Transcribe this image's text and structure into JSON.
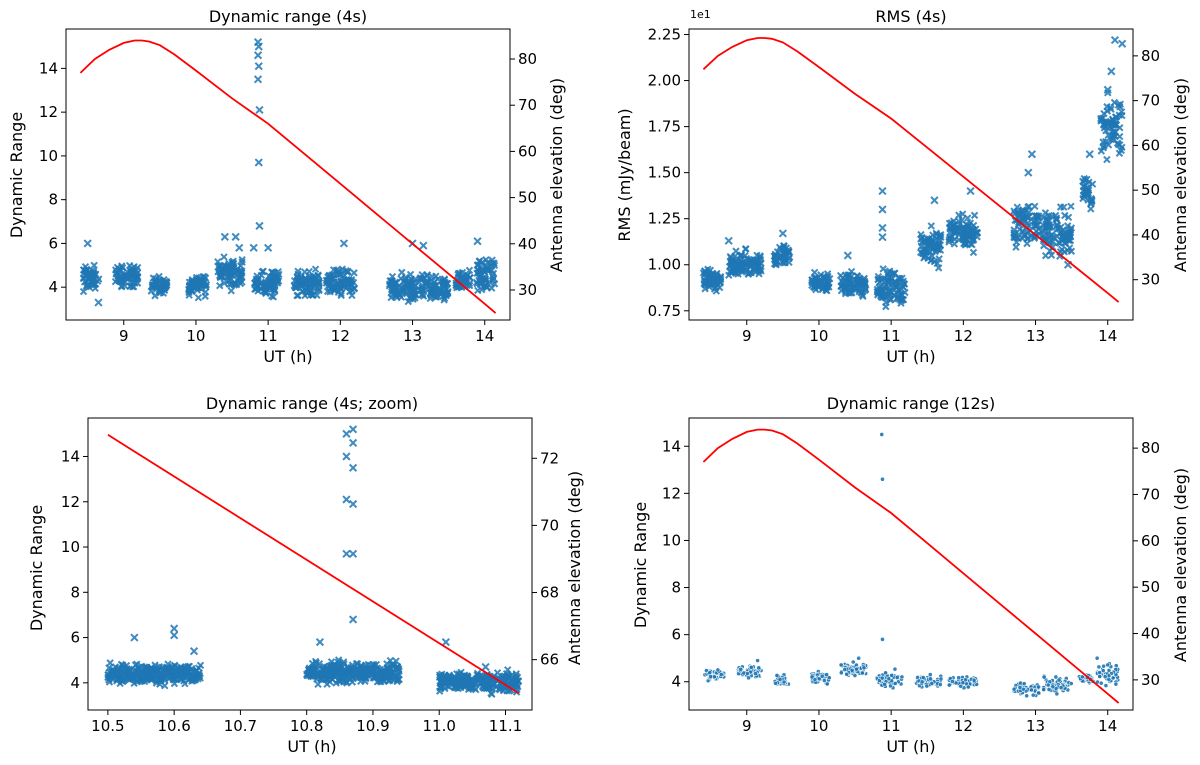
{
  "colors": {
    "points": "#1f77b4",
    "elevation": "#ff0000",
    "axes": "#000000"
  },
  "chart_data": [
    {
      "type": "scatter",
      "title": "Dynamic range (4s)",
      "xlabel": "UT (h)",
      "ylabel": "Dynamic Range",
      "y2label": "Antenna elevation (deg)",
      "marker": "x",
      "xlim": [
        8.2,
        14.35
      ],
      "ylim": [
        2.5,
        15.8
      ],
      "y2lim": [
        23.5,
        86.5
      ],
      "xticks": [
        9,
        10,
        11,
        12,
        13,
        14
      ],
      "yticks": [
        4,
        6,
        8,
        10,
        12,
        14
      ],
      "y2ticks": [
        30,
        40,
        50,
        60,
        70,
        80
      ],
      "clusters": [
        {
          "x0": 8.42,
          "x1": 8.66,
          "ylo": 3.6,
          "yhi": 5.2
        },
        {
          "x0": 8.88,
          "x1": 9.2,
          "ylo": 3.8,
          "yhi": 5.2
        },
        {
          "x0": 9.38,
          "x1": 9.6,
          "ylo": 3.5,
          "yhi": 4.6
        },
        {
          "x0": 9.9,
          "x1": 10.15,
          "ylo": 3.4,
          "yhi": 4.9
        },
        {
          "x0": 10.3,
          "x1": 10.65,
          "ylo": 3.7,
          "yhi": 5.6
        },
        {
          "x0": 10.8,
          "x1": 11.15,
          "ylo": 3.4,
          "yhi": 5.0
        },
        {
          "x0": 11.35,
          "x1": 11.72,
          "ylo": 3.4,
          "yhi": 5.0
        },
        {
          "x0": 11.8,
          "x1": 12.2,
          "ylo": 3.4,
          "yhi": 5.0
        },
        {
          "x0": 12.68,
          "x1": 13.05,
          "ylo": 3.0,
          "yhi": 4.8
        },
        {
          "x0": 13.1,
          "x1": 13.5,
          "ylo": 3.0,
          "yhi": 4.8
        },
        {
          "x0": 13.6,
          "x1": 13.8,
          "ylo": 3.6,
          "yhi": 5.0
        },
        {
          "x0": 13.88,
          "x1": 14.15,
          "ylo": 3.4,
          "yhi": 5.8
        }
      ],
      "points": [
        {
          "x": 8.5,
          "y": 6.0
        },
        {
          "x": 8.65,
          "y": 3.3
        },
        {
          "x": 10.4,
          "y": 6.3
        },
        {
          "x": 10.55,
          "y": 6.3
        },
        {
          "x": 10.6,
          "y": 5.8
        },
        {
          "x": 10.8,
          "y": 5.8
        },
        {
          "x": 10.88,
          "y": 6.8
        },
        {
          "x": 10.87,
          "y": 9.7
        },
        {
          "x": 10.88,
          "y": 12.1
        },
        {
          "x": 10.86,
          "y": 13.5
        },
        {
          "x": 10.87,
          "y": 14.1
        },
        {
          "x": 10.86,
          "y": 14.6
        },
        {
          "x": 10.87,
          "y": 15.0
        },
        {
          "x": 10.86,
          "y": 15.2
        },
        {
          "x": 11.0,
          "y": 5.8
        },
        {
          "x": 12.05,
          "y": 6.0
        },
        {
          "x": 13.0,
          "y": 6.0
        },
        {
          "x": 13.15,
          "y": 5.9
        },
        {
          "x": 13.9,
          "y": 6.1
        }
      ],
      "elevation": {
        "x": [
          8.4,
          8.6,
          8.8,
          9.0,
          9.15,
          9.25,
          9.35,
          9.5,
          9.7,
          10.0,
          10.5,
          11.0,
          11.5,
          12.0,
          12.5,
          13.0,
          13.5,
          14.0,
          14.15
        ],
        "y": [
          77,
          80,
          82,
          83.5,
          84,
          84,
          83.8,
          83,
          81,
          77.5,
          71.5,
          66,
          59.5,
          53,
          46.5,
          40,
          33.5,
          27,
          25
        ]
      }
    },
    {
      "type": "scatter",
      "title": "RMS (4s)",
      "xlabel": "UT (h)",
      "ylabel": "RMS (mJy/beam)",
      "y2label": "Antenna elevation (deg)",
      "offset_text": "1e1",
      "marker": "x",
      "xlim": [
        8.2,
        14.35
      ],
      "ylim": [
        0.7,
        2.28
      ],
      "y2lim": [
        21,
        86
      ],
      "xticks": [
        9,
        10,
        11,
        12,
        13,
        14
      ],
      "yticks": [
        0.75,
        1.0,
        1.25,
        1.5,
        1.75,
        2.0,
        2.25
      ],
      "ytick_labels": [
        "0.75",
        "1.00",
        "1.25",
        "1.50",
        "1.75",
        "2.00",
        "2.25"
      ],
      "y2ticks": [
        30,
        40,
        50,
        60,
        70,
        80
      ],
      "clusters": [
        {
          "x0": 8.4,
          "x1": 8.65,
          "ylo": 0.83,
          "yhi": 1.0
        },
        {
          "x0": 8.75,
          "x1": 9.2,
          "ylo": 0.9,
          "yhi": 1.1
        },
        {
          "x0": 9.38,
          "x1": 9.6,
          "ylo": 0.98,
          "yhi": 1.12
        },
        {
          "x0": 9.9,
          "x1": 10.15,
          "ylo": 0.83,
          "yhi": 0.98
        },
        {
          "x0": 10.3,
          "x1": 10.65,
          "ylo": 0.8,
          "yhi": 1.0
        },
        {
          "x0": 10.8,
          "x1": 11.2,
          "ylo": 0.72,
          "yhi": 1.02
        },
        {
          "x0": 11.4,
          "x1": 11.7,
          "ylo": 0.95,
          "yhi": 1.25
        },
        {
          "x0": 11.8,
          "x1": 12.2,
          "ylo": 1.05,
          "yhi": 1.3
        },
        {
          "x0": 12.7,
          "x1": 13.05,
          "ylo": 1.05,
          "yhi": 1.4
        },
        {
          "x0": 13.1,
          "x1": 13.5,
          "ylo": 1.0,
          "yhi": 1.35
        },
        {
          "x0": 13.65,
          "x1": 13.8,
          "ylo": 1.25,
          "yhi": 1.5
        },
        {
          "x0": 13.9,
          "x1": 14.2,
          "ylo": 1.5,
          "yhi": 2.0
        }
      ],
      "points": [
        {
          "x": 8.75,
          "y": 1.13
        },
        {
          "x": 9.5,
          "y": 1.17
        },
        {
          "x": 10.4,
          "y": 1.05
        },
        {
          "x": 10.88,
          "y": 1.4
        },
        {
          "x": 10.88,
          "y": 1.3
        },
        {
          "x": 10.88,
          "y": 1.2
        },
        {
          "x": 10.88,
          "y": 1.15
        },
        {
          "x": 11.6,
          "y": 1.35
        },
        {
          "x": 12.1,
          "y": 1.4
        },
        {
          "x": 12.95,
          "y": 1.6
        },
        {
          "x": 12.9,
          "y": 1.5
        },
        {
          "x": 13.75,
          "y": 1.6
        },
        {
          "x": 14.1,
          "y": 2.22
        },
        {
          "x": 14.2,
          "y": 2.2
        },
        {
          "x": 14.05,
          "y": 2.05
        },
        {
          "x": 14.0,
          "y": 1.95
        },
        {
          "x": 13.45,
          "y": 1.0
        }
      ],
      "elevation": {
        "x": [
          8.4,
          8.6,
          8.8,
          9.0,
          9.15,
          9.25,
          9.35,
          9.5,
          9.7,
          10.0,
          10.5,
          11.0,
          11.5,
          12.0,
          12.5,
          13.0,
          13.5,
          14.0,
          14.15
        ],
        "y": [
          77,
          80,
          82,
          83.5,
          84,
          84,
          83.8,
          83,
          81,
          77.5,
          71.5,
          66,
          59.5,
          53,
          46.5,
          40,
          33.5,
          27,
          25
        ]
      }
    },
    {
      "type": "scatter",
      "title": "Dynamic range (4s; zoom)",
      "xlabel": "UT (h)",
      "ylabel": "Dynamic Range",
      "y2label": "Antenna elevation (deg)",
      "marker": "x",
      "xlim": [
        10.47,
        11.14
      ],
      "ylim": [
        2.8,
        15.7
      ],
      "y2lim": [
        64.5,
        73.2
      ],
      "xticks": [
        10.5,
        10.6,
        10.7,
        10.8,
        10.9,
        11.0,
        11.1
      ],
      "xtick_labels": [
        "10.5",
        "10.6",
        "10.7",
        "10.8",
        "10.9",
        "11.0",
        "11.1"
      ],
      "yticks": [
        4,
        6,
        8,
        10,
        12,
        14
      ],
      "y2ticks": [
        66,
        68,
        70,
        72
      ],
      "clusters": [
        {
          "x0": 10.5,
          "x1": 10.64,
          "ylo": 3.8,
          "yhi": 5.0
        },
        {
          "x0": 10.8,
          "x1": 10.94,
          "ylo": 3.8,
          "yhi": 5.1
        },
        {
          "x0": 11.0,
          "x1": 11.12,
          "ylo": 3.4,
          "yhi": 4.7
        }
      ],
      "points": [
        {
          "x": 10.54,
          "y": 6.0
        },
        {
          "x": 10.6,
          "y": 6.4
        },
        {
          "x": 10.6,
          "y": 6.1
        },
        {
          "x": 10.63,
          "y": 5.4
        },
        {
          "x": 10.82,
          "y": 5.8
        },
        {
          "x": 10.87,
          "y": 6.8
        },
        {
          "x": 10.86,
          "y": 9.7
        },
        {
          "x": 10.87,
          "y": 9.7
        },
        {
          "x": 10.87,
          "y": 11.9
        },
        {
          "x": 10.86,
          "y": 12.1
        },
        {
          "x": 10.87,
          "y": 13.5
        },
        {
          "x": 10.86,
          "y": 14.0
        },
        {
          "x": 10.87,
          "y": 14.6
        },
        {
          "x": 10.86,
          "y": 15.0
        },
        {
          "x": 10.87,
          "y": 15.2
        },
        {
          "x": 11.01,
          "y": 5.8
        },
        {
          "x": 11.07,
          "y": 4.7
        }
      ],
      "elevation": {
        "x": [
          10.5,
          11.12
        ],
        "y": [
          72.7,
          65.0
        ]
      }
    },
    {
      "type": "scatter",
      "title": "Dynamic range (12s)",
      "xlabel": "UT (h)",
      "ylabel": "Dynamic Range",
      "y2label": "Antenna elevation (deg)",
      "marker": "star",
      "xlim": [
        8.2,
        14.35
      ],
      "ylim": [
        2.8,
        15.2
      ],
      "y2lim": [
        23.5,
        86.5
      ],
      "xticks": [
        9,
        10,
        11,
        12,
        13,
        14
      ],
      "yticks": [
        4,
        6,
        8,
        10,
        12,
        14
      ],
      "y2ticks": [
        30,
        40,
        50,
        60,
        70,
        80
      ],
      "clusters": [
        {
          "x0": 8.42,
          "x1": 8.7,
          "ylo": 3.9,
          "yhi": 4.6
        },
        {
          "x0": 8.88,
          "x1": 9.2,
          "ylo": 4.1,
          "yhi": 4.8
        },
        {
          "x0": 9.38,
          "x1": 9.6,
          "ylo": 3.7,
          "yhi": 4.4
        },
        {
          "x0": 9.9,
          "x1": 10.15,
          "ylo": 3.8,
          "yhi": 4.5
        },
        {
          "x0": 10.3,
          "x1": 10.65,
          "ylo": 4.1,
          "yhi": 4.9
        },
        {
          "x0": 10.8,
          "x1": 11.15,
          "ylo": 3.6,
          "yhi": 4.6
        },
        {
          "x0": 11.35,
          "x1": 11.7,
          "ylo": 3.6,
          "yhi": 4.4
        },
        {
          "x0": 11.8,
          "x1": 12.2,
          "ylo": 3.7,
          "yhi": 4.3
        },
        {
          "x0": 12.7,
          "x1": 13.05,
          "ylo": 3.3,
          "yhi": 4.1
        },
        {
          "x0": 13.1,
          "x1": 13.5,
          "ylo": 3.4,
          "yhi": 4.3
        },
        {
          "x0": 13.6,
          "x1": 13.8,
          "ylo": 3.9,
          "yhi": 4.4
        },
        {
          "x0": 13.85,
          "x1": 14.15,
          "ylo": 3.6,
          "yhi": 5.1
        }
      ],
      "points": [
        {
          "x": 10.87,
          "y": 14.5
        },
        {
          "x": 10.88,
          "y": 12.6
        },
        {
          "x": 10.88,
          "y": 5.8
        },
        {
          "x": 10.55,
          "y": 5.0
        },
        {
          "x": 8.6,
          "y": 4.5
        },
        {
          "x": 9.15,
          "y": 4.9
        }
      ],
      "elevation": {
        "x": [
          8.4,
          8.6,
          8.8,
          9.0,
          9.15,
          9.25,
          9.35,
          9.5,
          9.7,
          10.0,
          10.5,
          11.0,
          11.5,
          12.0,
          12.5,
          13.0,
          13.5,
          14.0,
          14.15
        ],
        "y": [
          77,
          80,
          82,
          83.5,
          84,
          84,
          83.8,
          83,
          81,
          77.5,
          71.5,
          66,
          59.5,
          53,
          46.5,
          40,
          33.5,
          27,
          25
        ]
      }
    }
  ]
}
